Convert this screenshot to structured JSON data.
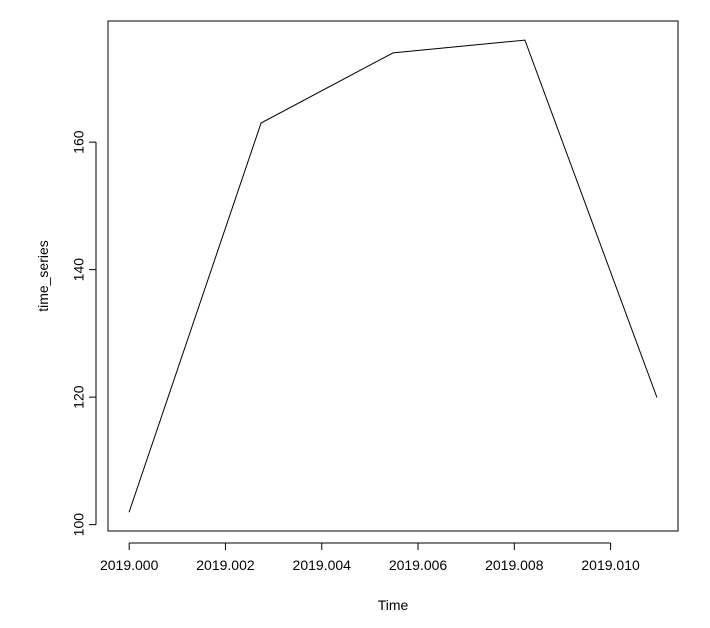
{
  "chart_data": {
    "type": "line",
    "xlabel": "Time",
    "ylabel": "time_series",
    "x": [
      2019.0,
      2019.00274,
      2019.00548,
      2019.00822,
      2019.01096
    ],
    "series": [
      {
        "values": [
          102,
          163,
          174,
          176,
          120
        ]
      }
    ],
    "xlim": [
      2018.99956,
      2019.0114
    ],
    "ylim": [
      99.0,
      179.0
    ],
    "x_ticks": [
      "2019.000",
      "2019.002",
      "2019.004",
      "2019.006",
      "2019.008",
      "2019.010"
    ],
    "x_tick_values": [
      2019.0,
      2019.002,
      2019.004,
      2019.006,
      2019.008,
      2019.01
    ],
    "y_ticks": [
      "100",
      "120",
      "140",
      "160"
    ],
    "y_tick_values": [
      100,
      120,
      140,
      160
    ],
    "grid": false,
    "line_color": "#000000"
  }
}
